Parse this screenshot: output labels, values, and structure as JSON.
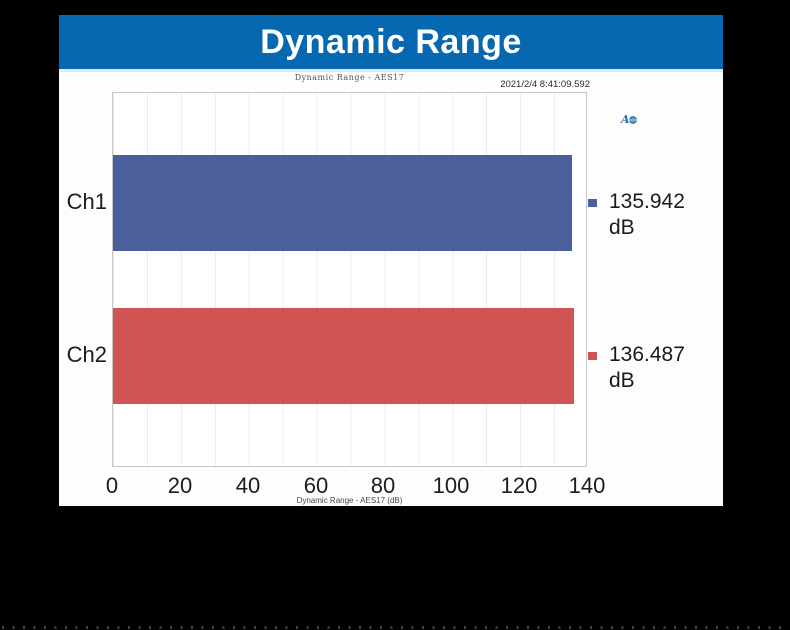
{
  "header": {
    "title": "Dynamic Range",
    "bg_color": "#0768b2"
  },
  "chart": {
    "title": "Dynamic Range - AES17",
    "timestamp": "2021/2/4 8:41:09.592",
    "logo_letter": "A"
  },
  "chart_data": {
    "type": "bar",
    "orientation": "horizontal",
    "title": "Dynamic Range - AES17",
    "xlabel": "Dynamic Range - AES17 (dB)",
    "categories": [
      "Ch1",
      "Ch2"
    ],
    "values": [
      135.942,
      136.487
    ],
    "value_labels": [
      "135.942 dB",
      "136.487 dB"
    ],
    "bar_colors": [
      "#4a5f9b",
      "#d05454"
    ],
    "xlim": [
      0,
      140
    ],
    "xticks": [
      0,
      20,
      40,
      60,
      80,
      100,
      120,
      140
    ],
    "xtick_labels": [
      "0",
      "20",
      "40",
      "60",
      "80",
      "100",
      "120",
      "140"
    ],
    "minor_grid_step_db": 10,
    "grid": "vertical-only",
    "legend_position": "right-of-bars"
  }
}
